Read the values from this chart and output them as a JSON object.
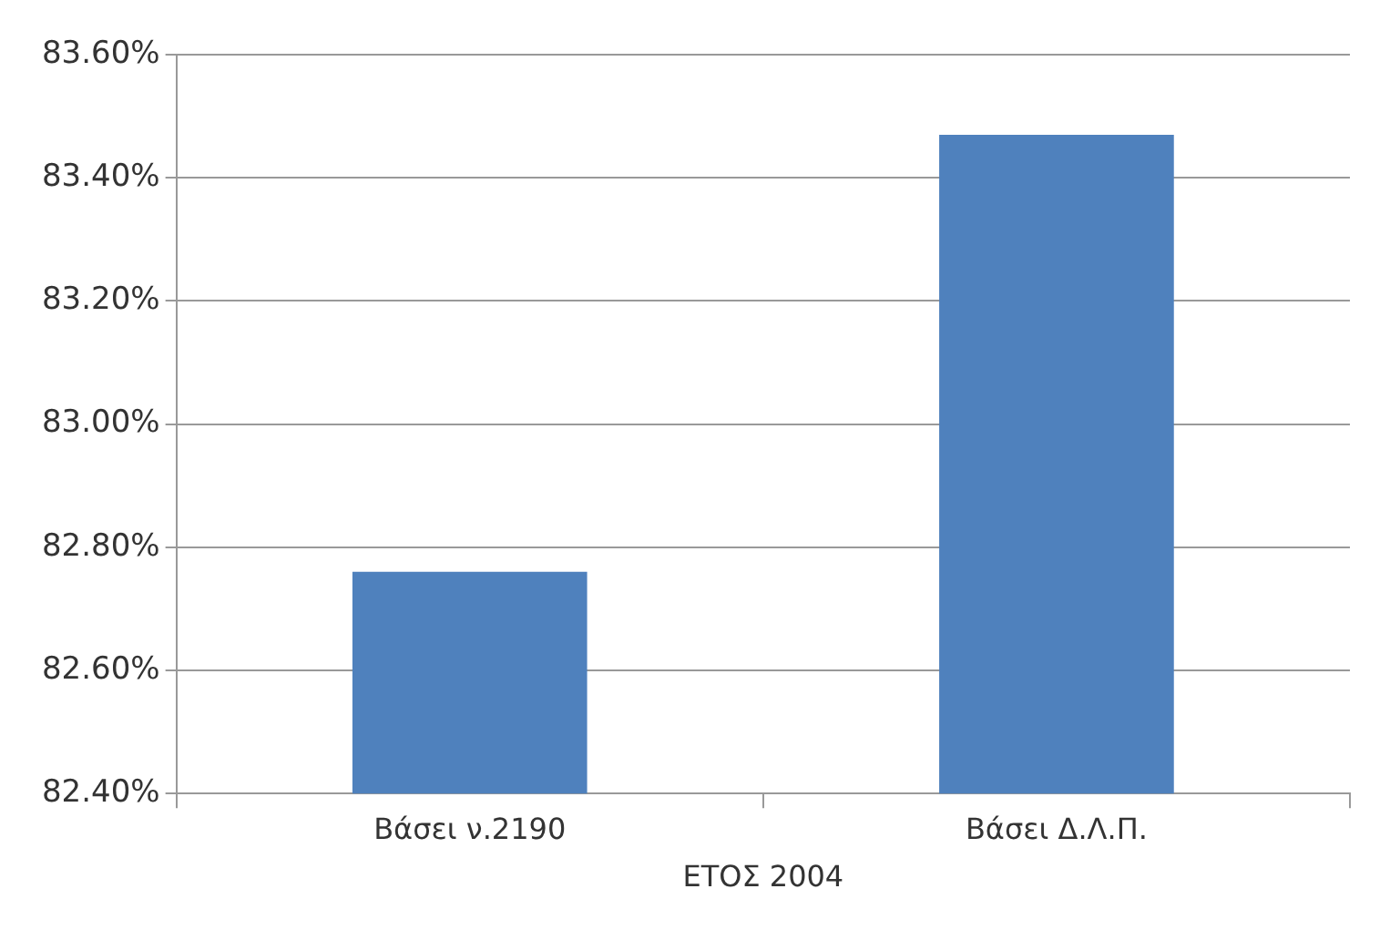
{
  "chart_data": {
    "type": "bar",
    "categories": [
      "Βάσει ν.2190",
      "Βάσει Δ.Λ.Π."
    ],
    "values": [
      82.76,
      83.47
    ],
    "color": "#4f81bd",
    "xlabel": "ΕΤΟΣ 2004",
    "ylim": [
      82.4,
      83.6
    ],
    "yticks": [
      {
        "value": 82.4,
        "label": "82.40%"
      },
      {
        "value": 82.6,
        "label": "82.60%"
      },
      {
        "value": 82.8,
        "label": "82.80%"
      },
      {
        "value": 83.0,
        "label": "83.00%"
      },
      {
        "value": 83.2,
        "label": "83.20%"
      },
      {
        "value": 83.4,
        "label": "83.40%"
      },
      {
        "value": 83.6,
        "label": "83.60%"
      }
    ],
    "grid": "y"
  }
}
